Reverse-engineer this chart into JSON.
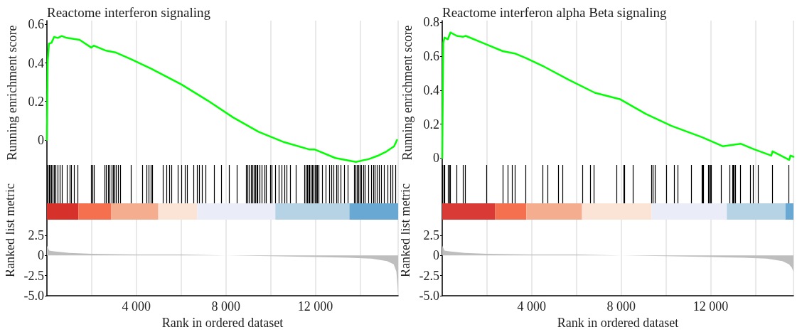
{
  "chart_data": [
    {
      "type": "line",
      "title": "Reactome interferon signaling",
      "ylabel": "Running enrichment score",
      "grid": "x",
      "tick_labels": "y",
      "xlim": [
        0,
        15700
      ],
      "xticks": [
        {
          "value": 2000,
          "label": null
        },
        {
          "value": 4000,
          "label": null
        },
        {
          "value": 6000,
          "label": null
        },
        {
          "value": 8000,
          "label": null
        },
        {
          "value": 10000,
          "label": null
        },
        {
          "value": 12000,
          "label": null
        },
        {
          "value": 14000,
          "label": null
        }
      ],
      "ylim": [
        -0.13,
        0.62
      ],
      "yticks": [
        0,
        0.2,
        0.4,
        0.6
      ],
      "series": [
        {
          "color": "#00ff00",
          "x": [
            0,
            34,
            91,
            206,
            320,
            490,
            660,
            890,
            1460,
            1980,
            2090,
            2610,
            3060,
            3750,
            4660,
            6030,
            7180,
            8320,
            9460,
            10610,
            11750,
            11980,
            12890,
            13810,
            14380,
            14840,
            15180,
            15520,
            15650
          ],
          "values": [
            0,
            0.41,
            0.5,
            0.505,
            0.535,
            0.53,
            0.54,
            0.53,
            0.52,
            0.48,
            0.49,
            0.465,
            0.455,
            0.42,
            0.37,
            0.287,
            0.205,
            0.117,
            0.042,
            -0.012,
            -0.05,
            -0.05,
            -0.094,
            -0.114,
            -0.1,
            -0.08,
            -0.06,
            -0.033,
            0
          ]
        }
      ]
    },
    {
      "type": "area",
      "xlabel": "Rank in ordered dataset",
      "ylabel": "Ranked list metric",
      "grid": "x",
      "xlim": [
        0,
        15700
      ],
      "xticks": [
        {
          "value": 2000,
          "label": null
        },
        {
          "value": 4000,
          "label": "4 000"
        },
        {
          "value": 6000,
          "label": null
        },
        {
          "value": 8000,
          "label": "8 000"
        },
        {
          "value": 10000,
          "label": null
        },
        {
          "value": 12000,
          "label": "12 000"
        },
        {
          "value": 14000,
          "label": null
        }
      ],
      "ylim": [
        -5,
        11.2
      ],
      "yticks": [
        2.5,
        0,
        -2.5,
        {
          "value": -5,
          "label": "-5.0"
        }
      ],
      "series": [
        {
          "color": "#bebebe",
          "x": [
            0,
            100,
            300,
            1000,
            2000,
            4000,
            6000,
            8000,
            10000,
            12000,
            13500,
            14500,
            15200,
            15500,
            15620,
            15700
          ],
          "values": [
            1.2,
            0.6,
            0.5,
            0.3,
            0.2,
            0.1,
            0.1,
            0,
            -0.1,
            -0.2,
            -0.3,
            -0.4,
            -0.7,
            -1.1,
            -2,
            -4.8
          ]
        }
      ],
      "bands": [
        {
          "axis": "x",
          "from": 0,
          "to": 1410,
          "color": "#d6312b"
        },
        {
          "axis": "x",
          "from": 1410,
          "to": 2860,
          "color": "#f4704e"
        },
        {
          "axis": "x",
          "from": 2860,
          "to": 4980,
          "color": "#f5ad90"
        },
        {
          "axis": "x",
          "from": 4980,
          "to": 6720,
          "color": "#fbe3d6"
        },
        {
          "axis": "x",
          "from": 6720,
          "to": 10210,
          "color": "#eaecf8"
        },
        {
          "axis": "x",
          "from": 10210,
          "to": 13520,
          "color": "#b6d3e6"
        },
        {
          "axis": "x",
          "from": 13520,
          "to": 15700,
          "color": "#6aa8d4"
        }
      ],
      "ref_lines": [
        {
          "axis": "x",
          "value": 30,
          "color": "#000000"
        },
        {
          "axis": "x",
          "value": 90,
          "color": "#000000"
        },
        {
          "axis": "x",
          "value": 150,
          "color": "#000000"
        },
        {
          "axis": "x",
          "value": 210,
          "color": "#000000"
        },
        {
          "axis": "x",
          "value": 260,
          "color": "#000000"
        },
        {
          "axis": "x",
          "value": 320,
          "color": "#000000"
        },
        {
          "axis": "x",
          "value": 380,
          "color": "#000000"
        },
        {
          "axis": "x",
          "value": 490,
          "color": "#000000"
        },
        {
          "axis": "x",
          "value": 570,
          "color": "#000000"
        },
        {
          "axis": "x",
          "value": 660,
          "color": "#000000"
        },
        {
          "axis": "x",
          "value": 910,
          "color": "#000000"
        },
        {
          "axis": "x",
          "value": 1010,
          "color": "#000000"
        },
        {
          "axis": "x",
          "value": 1100,
          "color": "#000000"
        },
        {
          "axis": "x",
          "value": 1210,
          "color": "#000000"
        },
        {
          "axis": "x",
          "value": 1370,
          "color": "#000000"
        },
        {
          "axis": "x",
          "value": 1980,
          "color": "#000000"
        },
        {
          "axis": "x",
          "value": 2030,
          "color": "#000000"
        },
        {
          "axis": "x",
          "value": 2090,
          "color": "#000000"
        },
        {
          "axis": "x",
          "value": 2580,
          "color": "#000000"
        },
        {
          "axis": "x",
          "value": 2660,
          "color": "#000000"
        },
        {
          "axis": "x",
          "value": 2740,
          "color": "#000000"
        },
        {
          "axis": "x",
          "value": 2810,
          "color": "#000000"
        },
        {
          "axis": "x",
          "value": 2890,
          "color": "#000000"
        },
        {
          "axis": "x",
          "value": 2950,
          "color": "#000000"
        },
        {
          "axis": "x",
          "value": 3020,
          "color": "#000000"
        },
        {
          "axis": "x",
          "value": 3090,
          "color": "#000000"
        },
        {
          "axis": "x",
          "value": 3180,
          "color": "#000000"
        },
        {
          "axis": "x",
          "value": 3270,
          "color": "#000000"
        },
        {
          "axis": "x",
          "value": 3750,
          "color": "#000000"
        },
        {
          "axis": "x",
          "value": 4260,
          "color": "#000000"
        },
        {
          "axis": "x",
          "value": 4470,
          "color": "#000000"
        },
        {
          "axis": "x",
          "value": 4550,
          "color": "#000000"
        },
        {
          "axis": "x",
          "value": 4660,
          "color": "#000000"
        },
        {
          "axis": "x",
          "value": 4720,
          "color": "#000000"
        },
        {
          "axis": "x",
          "value": 5180,
          "color": "#000000"
        },
        {
          "axis": "x",
          "value": 5350,
          "color": "#000000"
        },
        {
          "axis": "x",
          "value": 5460,
          "color": "#000000"
        },
        {
          "axis": "x",
          "value": 5580,
          "color": "#000000"
        },
        {
          "axis": "x",
          "value": 5840,
          "color": "#000000"
        },
        {
          "axis": "x",
          "value": 6030,
          "color": "#000000"
        },
        {
          "axis": "x",
          "value": 6170,
          "color": "#000000"
        },
        {
          "axis": "x",
          "value": 6260,
          "color": "#000000"
        },
        {
          "axis": "x",
          "value": 6550,
          "color": "#000000"
        },
        {
          "axis": "x",
          "value": 6720,
          "color": "#000000"
        },
        {
          "axis": "x",
          "value": 6810,
          "color": "#000000"
        },
        {
          "axis": "x",
          "value": 6950,
          "color": "#000000"
        },
        {
          "axis": "x",
          "value": 7090,
          "color": "#000000"
        },
        {
          "axis": "x",
          "value": 7490,
          "color": "#000000"
        },
        {
          "axis": "x",
          "value": 7810,
          "color": "#000000"
        },
        {
          "axis": "x",
          "value": 8140,
          "color": "#000000"
        },
        {
          "axis": "x",
          "value": 8490,
          "color": "#000000"
        },
        {
          "axis": "x",
          "value": 8920,
          "color": "#000000"
        },
        {
          "axis": "x",
          "value": 8980,
          "color": "#000000"
        },
        {
          "axis": "x",
          "value": 9040,
          "color": "#000000"
        },
        {
          "axis": "x",
          "value": 9120,
          "color": "#000000"
        },
        {
          "axis": "x",
          "value": 9180,
          "color": "#000000"
        },
        {
          "axis": "x",
          "value": 9260,
          "color": "#000000"
        },
        {
          "axis": "x",
          "value": 9320,
          "color": "#000000"
        },
        {
          "axis": "x",
          "value": 9370,
          "color": "#000000"
        },
        {
          "axis": "x",
          "value": 9430,
          "color": "#000000"
        },
        {
          "axis": "x",
          "value": 9520,
          "color": "#000000"
        },
        {
          "axis": "x",
          "value": 9600,
          "color": "#000000"
        },
        {
          "axis": "x",
          "value": 9720,
          "color": "#000000"
        },
        {
          "axis": "x",
          "value": 9810,
          "color": "#000000"
        },
        {
          "axis": "x",
          "value": 10000,
          "color": "#000000"
        },
        {
          "axis": "x",
          "value": 10060,
          "color": "#000000"
        },
        {
          "axis": "x",
          "value": 10210,
          "color": "#000000"
        },
        {
          "axis": "x",
          "value": 10360,
          "color": "#000000"
        },
        {
          "axis": "x",
          "value": 10490,
          "color": "#000000"
        },
        {
          "axis": "x",
          "value": 10610,
          "color": "#000000"
        },
        {
          "axis": "x",
          "value": 10720,
          "color": "#000000"
        },
        {
          "axis": "x",
          "value": 10890,
          "color": "#000000"
        },
        {
          "axis": "x",
          "value": 11120,
          "color": "#000000"
        },
        {
          "axis": "x",
          "value": 11500,
          "color": "#000000"
        },
        {
          "axis": "x",
          "value": 11580,
          "color": "#000000"
        },
        {
          "axis": "x",
          "value": 11640,
          "color": "#000000"
        },
        {
          "axis": "x",
          "value": 11690,
          "color": "#000000"
        },
        {
          "axis": "x",
          "value": 11750,
          "color": "#000000"
        },
        {
          "axis": "x",
          "value": 11810,
          "color": "#000000"
        },
        {
          "axis": "x",
          "value": 11860,
          "color": "#000000"
        },
        {
          "axis": "x",
          "value": 11920,
          "color": "#000000"
        },
        {
          "axis": "x",
          "value": 11980,
          "color": "#000000"
        },
        {
          "axis": "x",
          "value": 12040,
          "color": "#000000"
        },
        {
          "axis": "x",
          "value": 12090,
          "color": "#000000"
        },
        {
          "axis": "x",
          "value": 12150,
          "color": "#000000"
        },
        {
          "axis": "x",
          "value": 12300,
          "color": "#000000"
        },
        {
          "axis": "x",
          "value": 12460,
          "color": "#000000"
        },
        {
          "axis": "x",
          "value": 12640,
          "color": "#000000"
        },
        {
          "axis": "x",
          "value": 12720,
          "color": "#000000"
        },
        {
          "axis": "x",
          "value": 12810,
          "color": "#000000"
        },
        {
          "axis": "x",
          "value": 12930,
          "color": "#000000"
        },
        {
          "axis": "x",
          "value": 13010,
          "color": "#000000"
        },
        {
          "axis": "x",
          "value": 13120,
          "color": "#000000"
        },
        {
          "axis": "x",
          "value": 13290,
          "color": "#000000"
        },
        {
          "axis": "x",
          "value": 13460,
          "color": "#000000"
        },
        {
          "axis": "x",
          "value": 13750,
          "color": "#000000"
        },
        {
          "axis": "x",
          "value": 13810,
          "color": "#000000"
        },
        {
          "axis": "x",
          "value": 13860,
          "color": "#000000"
        },
        {
          "axis": "x",
          "value": 13920,
          "color": "#000000"
        },
        {
          "axis": "x",
          "value": 13980,
          "color": "#000000"
        },
        {
          "axis": "x",
          "value": 14040,
          "color": "#000000"
        },
        {
          "axis": "x",
          "value": 14150,
          "color": "#000000"
        },
        {
          "axis": "x",
          "value": 14210,
          "color": "#000000"
        },
        {
          "axis": "x",
          "value": 14380,
          "color": "#000000"
        },
        {
          "axis": "x",
          "value": 14490,
          "color": "#000000"
        },
        {
          "axis": "x",
          "value": 14610,
          "color": "#000000"
        },
        {
          "axis": "x",
          "value": 14660,
          "color": "#000000"
        },
        {
          "axis": "x",
          "value": 14740,
          "color": "#000000"
        },
        {
          "axis": "x",
          "value": 14840,
          "color": "#000000"
        },
        {
          "axis": "x",
          "value": 14950,
          "color": "#000000"
        },
        {
          "axis": "x",
          "value": 15060,
          "color": "#000000"
        },
        {
          "axis": "x",
          "value": 15240,
          "color": "#000000"
        },
        {
          "axis": "x",
          "value": 15350,
          "color": "#000000"
        },
        {
          "axis": "x",
          "value": 15460,
          "color": "#000000"
        },
        {
          "axis": "x",
          "value": 15580,
          "color": "#000000"
        }
      ]
    },
    {
      "type": "line",
      "title": "Reactome interferon alpha Beta signaling",
      "ylabel": "Running enrichment score",
      "grid": "x",
      "tick_labels": "y",
      "xlim": [
        0,
        15700
      ],
      "xticks": [
        {
          "value": 2000,
          "label": null
        },
        {
          "value": 4000,
          "label": null
        },
        {
          "value": 6000,
          "label": null
        },
        {
          "value": 8000,
          "label": null
        },
        {
          "value": 10000,
          "label": null
        },
        {
          "value": 12000,
          "label": null
        },
        {
          "value": 14000,
          "label": null
        }
      ],
      "ylim": [
        -0.04,
        0.81
      ],
      "yticks": [
        0,
        0.2,
        0.4,
        0.6,
        0.8
      ],
      "series": [
        {
          "color": "#00ff00",
          "x": [
            0,
            46,
            103,
            251,
            366,
            651,
            937,
            1051,
            1966,
            2709,
            3280,
            3737,
            4537,
            5680,
            6823,
            7966,
            9109,
            10251,
            11623,
            12537,
            13337,
            13909,
            14709,
            14766,
            15509,
            15566,
            15700
          ],
          "values": [
            0,
            0.68,
            0.71,
            0.7,
            0.74,
            0.72,
            0.715,
            0.72,
            0.67,
            0.63,
            0.615,
            0.59,
            0.54,
            0.46,
            0.385,
            0.346,
            0.26,
            0.19,
            0.123,
            0.07,
            0.085,
            0.054,
            0.015,
            0.04,
            -0.01,
            0.015,
            0.008
          ]
        }
      ]
    },
    {
      "type": "area",
      "xlabel": "Rank in ordered dataset",
      "ylabel": "Ranked list metric",
      "grid": "x",
      "xlim": [
        0,
        15700
      ],
      "xticks": [
        {
          "value": 2000,
          "label": null
        },
        {
          "value": 4000,
          "label": "4 000"
        },
        {
          "value": 6000,
          "label": null
        },
        {
          "value": 8000,
          "label": "8 000"
        },
        {
          "value": 10000,
          "label": null
        },
        {
          "value": 12000,
          "label": "12 000"
        },
        {
          "value": 14000,
          "label": null
        }
      ],
      "ylim": [
        -5,
        11.2
      ],
      "yticks": [
        2.5,
        0,
        -2.5,
        {
          "value": -5,
          "label": "-5.0"
        }
      ],
      "series": [
        {
          "color": "#bebebe",
          "x": [
            0,
            100,
            300,
            1000,
            2000,
            4000,
            6000,
            8000,
            10000,
            12000,
            13500,
            14500,
            15200,
            15500,
            15620,
            15700
          ],
          "values": [
            1.2,
            0.6,
            0.5,
            0.3,
            0.2,
            0.1,
            0.1,
            0,
            -0.1,
            -0.2,
            -0.3,
            -0.4,
            -0.7,
            -1.1,
            -1.5,
            -2
          ]
        }
      ],
      "bands": [
        {
          "axis": "x",
          "from": 0,
          "to": 2370,
          "color": "#d93a35"
        },
        {
          "axis": "x",
          "from": 2370,
          "to": 3760,
          "color": "#f4704e"
        },
        {
          "axis": "x",
          "from": 3760,
          "to": 6250,
          "color": "#f5ad90"
        },
        {
          "axis": "x",
          "from": 6250,
          "to": 9360,
          "color": "#fbe3d6"
        },
        {
          "axis": "x",
          "from": 9360,
          "to": 12720,
          "color": "#eaecf8"
        },
        {
          "axis": "x",
          "from": 12720,
          "to": 15340,
          "color": "#b6d3e6"
        },
        {
          "axis": "x",
          "from": 15340,
          "to": 15700,
          "color": "#6aa8d4"
        }
      ],
      "ref_lines": [
        {
          "axis": "x",
          "value": 20,
          "color": "#000000"
        },
        {
          "axis": "x",
          "value": 60,
          "color": "#000000"
        },
        {
          "axis": "x",
          "value": 100,
          "color": "#000000"
        },
        {
          "axis": "x",
          "value": 260,
          "color": "#000000"
        },
        {
          "axis": "x",
          "value": 310,
          "color": "#000000"
        },
        {
          "axis": "x",
          "value": 350,
          "color": "#000000"
        },
        {
          "axis": "x",
          "value": 650,
          "color": "#000000"
        },
        {
          "axis": "x",
          "value": 930,
          "color": "#000000"
        },
        {
          "axis": "x",
          "value": 1030,
          "color": "#000000"
        },
        {
          "axis": "x",
          "value": 1990,
          "color": "#000000"
        },
        {
          "axis": "x",
          "value": 2720,
          "color": "#000000"
        },
        {
          "axis": "x",
          "value": 2920,
          "color": "#000000"
        },
        {
          "axis": "x",
          "value": 3110,
          "color": "#000000"
        },
        {
          "axis": "x",
          "value": 3260,
          "color": "#000000"
        },
        {
          "axis": "x",
          "value": 3740,
          "color": "#000000"
        },
        {
          "axis": "x",
          "value": 4500,
          "color": "#000000"
        },
        {
          "axis": "x",
          "value": 4710,
          "color": "#000000"
        },
        {
          "axis": "x",
          "value": 5180,
          "color": "#000000"
        },
        {
          "axis": "x",
          "value": 5380,
          "color": "#000000"
        },
        {
          "axis": "x",
          "value": 6280,
          "color": "#000000"
        },
        {
          "axis": "x",
          "value": 6620,
          "color": "#000000"
        },
        {
          "axis": "x",
          "value": 6790,
          "color": "#000000"
        },
        {
          "axis": "x",
          "value": 7810,
          "color": "#000000"
        },
        {
          "axis": "x",
          "value": 8100,
          "color": "#000000"
        },
        {
          "axis": "x",
          "value": 8150,
          "color": "#000000"
        },
        {
          "axis": "x",
          "value": 8540,
          "color": "#000000"
        },
        {
          "axis": "x",
          "value": 9360,
          "color": "#000000"
        },
        {
          "axis": "x",
          "value": 9400,
          "color": "#000000"
        },
        {
          "axis": "x",
          "value": 9510,
          "color": "#000000"
        },
        {
          "axis": "x",
          "value": 10010,
          "color": "#000000"
        },
        {
          "axis": "x",
          "value": 10370,
          "color": "#000000"
        },
        {
          "axis": "x",
          "value": 10540,
          "color": "#000000"
        },
        {
          "axis": "x",
          "value": 11130,
          "color": "#000000"
        },
        {
          "axis": "x",
          "value": 11610,
          "color": "#000000"
        },
        {
          "axis": "x",
          "value": 11650,
          "color": "#000000"
        },
        {
          "axis": "x",
          "value": 11680,
          "color": "#000000"
        },
        {
          "axis": "x",
          "value": 11890,
          "color": "#000000"
        },
        {
          "axis": "x",
          "value": 11930,
          "color": "#000000"
        },
        {
          "axis": "x",
          "value": 11990,
          "color": "#000000"
        },
        {
          "axis": "x",
          "value": 12020,
          "color": "#000000"
        },
        {
          "axis": "x",
          "value": 12460,
          "color": "#000000"
        },
        {
          "axis": "x",
          "value": 12860,
          "color": "#000000"
        },
        {
          "axis": "x",
          "value": 12960,
          "color": "#000000"
        },
        {
          "axis": "x",
          "value": 13010,
          "color": "#000000"
        },
        {
          "axis": "x",
          "value": 13050,
          "color": "#000000"
        },
        {
          "axis": "x",
          "value": 13110,
          "color": "#000000"
        },
        {
          "axis": "x",
          "value": 13320,
          "color": "#000000"
        },
        {
          "axis": "x",
          "value": 13760,
          "color": "#000000"
        },
        {
          "axis": "x",
          "value": 13890,
          "color": "#000000"
        },
        {
          "axis": "x",
          "value": 14120,
          "color": "#000000"
        },
        {
          "axis": "x",
          "value": 14750,
          "color": "#000000"
        },
        {
          "axis": "x",
          "value": 15480,
          "color": "#000000"
        }
      ]
    }
  ]
}
